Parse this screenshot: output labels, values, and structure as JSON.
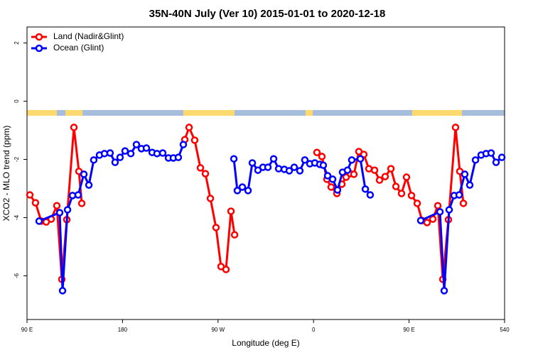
{
  "chart_data": {
    "type": "line",
    "title": "35N-40N July (Ver 10)   2015-01-01 to 2020-12-18",
    "x_label": "Longitude (deg E)",
    "y_label": "XCO2 - MLO trend (ppm)",
    "xlim": [
      90,
      540
    ],
    "ylim": [
      -7.5,
      2.55
    ],
    "xticks": [
      {
        "value": 90,
        "label": "90 E"
      },
      180,
      {
        "value": 270,
        "label": "90 W"
      },
      {
        "value": 360,
        "label": "0"
      },
      {
        "value": 450,
        "label": "90 E"
      },
      540
    ],
    "yticks": [
      -6,
      -4,
      -2,
      0,
      2
    ],
    "legend": "top-left",
    "series": [
      {
        "name": "Land (Nadir&Glint)",
        "color": "#ff0000",
        "x": [
          92.7,
          98.0,
          103.4,
          108.1,
          112.8,
          118.1,
          122.8,
          127.5,
          134.2,
          138.9,
          141.6,
          190,
          238.7,
          242.7,
          248.0,
          253.4,
          258.1,
          262.8,
          268.1,
          272.8,
          277.5,
          282.2,
          285.6,
          320,
          363.2,
          367.9,
          372.6,
          376.6,
          382.0,
          386.7,
          390.7,
          394.7,
          398.0,
          402.7,
          407.4,
          412.1,
          417.5,
          422.2,
          427.5,
          432.9,
          437.6,
          442.9,
          447.6,
          452.3,
          457.7,
          462.3,
          467.0,
          472.4,
          477.1,
          481.8,
          487.1,
          493.8,
          497.8,
          501.2
        ],
        "values": [
          -3.22,
          -3.49,
          -4.12,
          -4.15,
          -4.05,
          -3.59,
          -6.12,
          -4.07,
          -0.9,
          -2.41,
          -3.51,
          null,
          -1.32,
          -0.9,
          -1.34,
          -2.29,
          -2.49,
          -3.34,
          -4.34,
          -5.68,
          -5.78,
          -3.78,
          -4.59,
          null,
          -1.76,
          -1.9,
          -2.68,
          -2.95,
          -3.17,
          -2.85,
          -2.61,
          -2.49,
          -2.51,
          -1.73,
          -1.83,
          -2.32,
          -2.37,
          -2.71,
          -2.59,
          -2.32,
          -2.93,
          -3.17,
          -2.61,
          -3.24,
          -3.51,
          -4.1,
          -4.17,
          -4.05,
          -3.59,
          -6.12,
          -4.07,
          -0.9,
          -2.41,
          -3.51
        ]
      },
      {
        "name": "Ocean (Glint)",
        "color": "#0000ff",
        "x": [
          101.4,
          120.8,
          123.5,
          128.2,
          132.9,
          138.2,
          143.6,
          148.3,
          152.9,
          158.3,
          163.0,
          168.3,
          173.0,
          177.7,
          182.4,
          187.8,
          193.1,
          197.8,
          202.5,
          207.9,
          212.5,
          217.9,
          223.3,
          227.9,
          232.6,
          237.3,
          261,
          284.9,
          288.2,
          292.9,
          298.3,
          302.3,
          307.6,
          312.3,
          317.0,
          322.4,
          327.1,
          332.4,
          337.1,
          341.8,
          347.1,
          351.8,
          356.5,
          361.2,
          365.9,
          369.2,
          373.3,
          378.0,
          382.6,
          387.3,
          392.0,
          396.0,
          404.1,
          408.8,
          413.4,
          437,
          461.0,
          479.1,
          483.1,
          487.8,
          492.5,
          497.2,
          502.5,
          507.2,
          512.6,
          517.9,
          522.6,
          527.3,
          532.0,
          537.4
        ],
        "values": [
          -4.12,
          -3.83,
          -6.51,
          -3.73,
          -3.24,
          -3.22,
          -2.51,
          -2.88,
          -2.02,
          -1.85,
          -1.8,
          -1.78,
          -2.1,
          -1.93,
          -1.71,
          -1.8,
          -1.49,
          -1.63,
          -1.61,
          -1.76,
          -1.8,
          -1.78,
          -1.95,
          -1.95,
          -1.93,
          -1.49,
          null,
          -1.98,
          -3.07,
          -2.95,
          -3.07,
          -2.12,
          -2.37,
          -2.27,
          -2.27,
          -1.98,
          -2.32,
          -2.34,
          -2.39,
          -2.27,
          -2.39,
          -2.02,
          -2.15,
          -2.12,
          -2.17,
          -2.2,
          -2.56,
          -2.68,
          -3.05,
          -2.44,
          -2.37,
          -2.02,
          -1.98,
          -3.02,
          -3.22,
          null,
          -4.1,
          -3.8,
          -6.51,
          -3.73,
          -3.24,
          -3.22,
          -2.51,
          -2.88,
          -2.02,
          -1.85,
          -1.8,
          -1.78,
          -2.1,
          -1.93
        ]
      }
    ]
  }
}
